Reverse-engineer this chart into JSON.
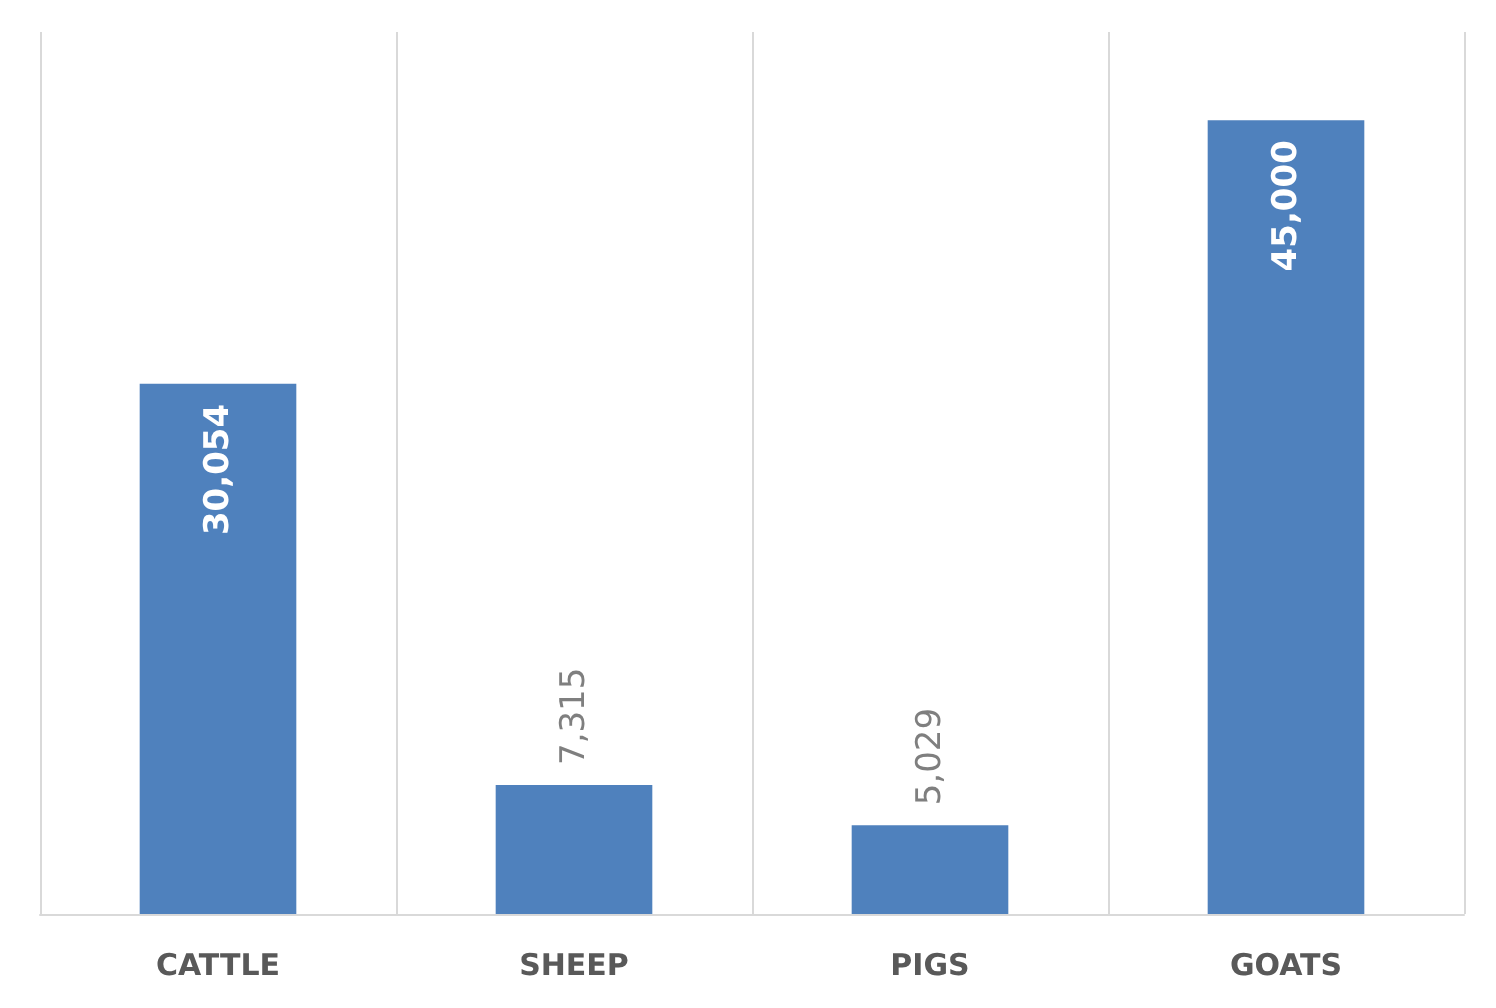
{
  "chart_data": {
    "type": "bar",
    "categories": [
      "CATTLE",
      "SHEEP",
      "PIGS",
      "GOATS"
    ],
    "values": [
      30054,
      7315,
      5029,
      45000
    ],
    "value_labels": [
      "30,054",
      "7,315",
      "5,029",
      "45,000"
    ],
    "color": "#4f81bd",
    "ylim": [
      0,
      50000
    ],
    "tick_labels": "x",
    "grid": "x"
  }
}
